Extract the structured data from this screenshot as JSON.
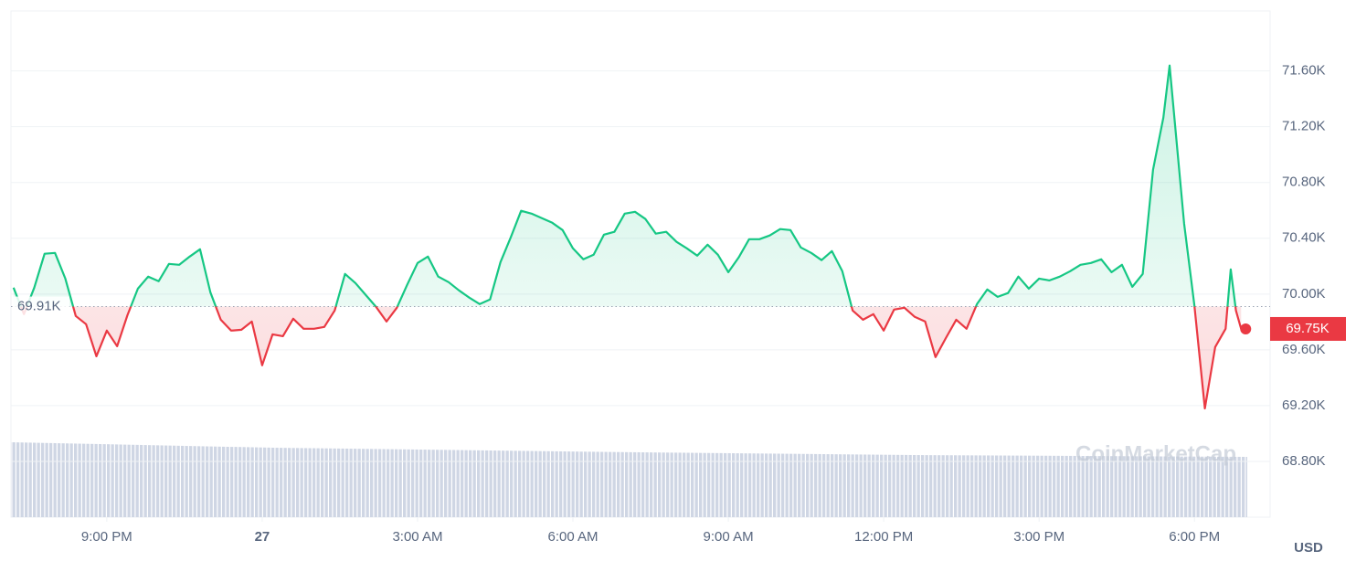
{
  "chart_data": {
    "type": "line",
    "x": [
      19.2,
      19.4,
      19.6,
      19.8,
      20,
      20.2,
      20.4,
      20.6,
      20.8,
      21,
      21.2,
      21.4,
      21.6,
      21.8,
      22,
      22.2,
      22.4,
      22.6,
      22.8,
      23,
      23.2,
      23.4,
      23.6,
      23.8,
      24,
      24.2,
      24.4,
      24.6,
      24.8,
      25,
      25.2,
      25.4,
      25.6,
      25.8,
      26,
      26.2,
      26.4,
      26.6,
      26.8,
      27,
      27.2,
      27.4,
      27.6,
      27.8,
      28,
      28.2,
      28.4,
      28.6,
      28.8,
      29,
      29.2,
      29.4,
      29.6,
      29.8,
      30,
      30.2,
      30.4,
      30.6,
      30.8,
      31,
      31.2,
      31.4,
      31.6,
      31.8,
      32,
      32.2,
      32.4,
      32.6,
      32.8,
      33,
      33.2,
      33.4,
      33.6,
      33.8,
      34,
      34.2,
      34.4,
      34.6,
      34.8,
      35,
      35.2,
      35.4,
      35.6,
      35.8,
      36,
      36.2,
      36.4,
      36.6,
      36.8,
      37,
      37.2,
      37.4,
      37.6,
      37.8,
      38,
      38.2,
      38.4,
      38.6,
      38.8,
      39,
      39.2,
      39.4,
      39.6,
      39.8,
      40,
      40.2,
      40.4,
      40.6,
      40.8,
      41,
      41.2,
      41.4,
      41.52,
      41.6,
      41.8,
      42,
      42.2,
      42.4,
      42.6,
      42.7,
      42.8,
      42.9
    ],
    "values": [
      70046,
      69856,
      70046,
      70289,
      70295,
      70111,
      69843,
      69784,
      69554,
      69738,
      69626,
      69849,
      70039,
      70125,
      70092,
      70216,
      70210,
      70269,
      70321,
      70013,
      69816,
      69738,
      69744,
      69803,
      69489,
      69711,
      69698,
      69823,
      69751,
      69751,
      69764,
      69882,
      70144,
      70079,
      69993,
      69908,
      69803,
      69902,
      70066,
      70223,
      70269,
      70125,
      70085,
      70026,
      69974,
      69928,
      69961,
      70229,
      70407,
      70597,
      70577,
      70544,
      70511,
      70459,
      70328,
      70249,
      70282,
      70426,
      70446,
      70577,
      70590,
      70538,
      70433,
      70446,
      70374,
      70328,
      70275,
      70354,
      70282,
      70157,
      70262,
      70393,
      70393,
      70420,
      70466,
      70459,
      70334,
      70295,
      70243,
      70308,
      70164,
      69882,
      69816,
      69856,
      69738,
      69889,
      69902,
      69836,
      69803,
      69548,
      69685,
      69816,
      69751,
      69928,
      70033,
      69980,
      70007,
      70125,
      70039,
      70111,
      70098,
      70125,
      70164,
      70210,
      70223,
      70249,
      70157,
      70210,
      70052,
      70144,
      70892,
      71266,
      71639,
      71311,
      70505,
      69915,
      69180,
      69620,
      69751,
      70177,
      69882,
      69750
    ],
    "up_color": "#16c784",
    "down_color": "#ea3943",
    "baseline": 69910,
    "baseline_label": "69.91K",
    "current_label": "69.75K",
    "xlim": [
      19.15,
      43.46
    ],
    "xticks": [
      {
        "value": 21,
        "label": "9:00 PM"
      },
      {
        "value": 24,
        "label": "27"
      },
      {
        "value": 27,
        "label": "3:00 AM"
      },
      {
        "value": 30,
        "label": "6:00 AM"
      },
      {
        "value": 33,
        "label": "9:00 AM"
      },
      {
        "value": 36,
        "label": "12:00 PM"
      },
      {
        "value": 39,
        "label": "3:00 PM"
      },
      {
        "value": 42,
        "label": "6:00 PM"
      }
    ],
    "ylim": [
      68400,
      72030
    ],
    "yticks": [
      {
        "value": 71600,
        "label": "71.60K"
      },
      {
        "value": 71200,
        "label": "71.20K"
      },
      {
        "value": 70800,
        "label": "70.80K"
      },
      {
        "value": 70400,
        "label": "70.40K"
      },
      {
        "value": 70000,
        "label": "70.00K"
      },
      {
        "value": 69600,
        "label": "69.60K"
      },
      {
        "value": 69200,
        "label": "69.20K"
      },
      {
        "value": 68800,
        "label": "68.80K"
      }
    ],
    "grid": true,
    "currency": "USD",
    "watermark": "CoinMarketCap"
  }
}
